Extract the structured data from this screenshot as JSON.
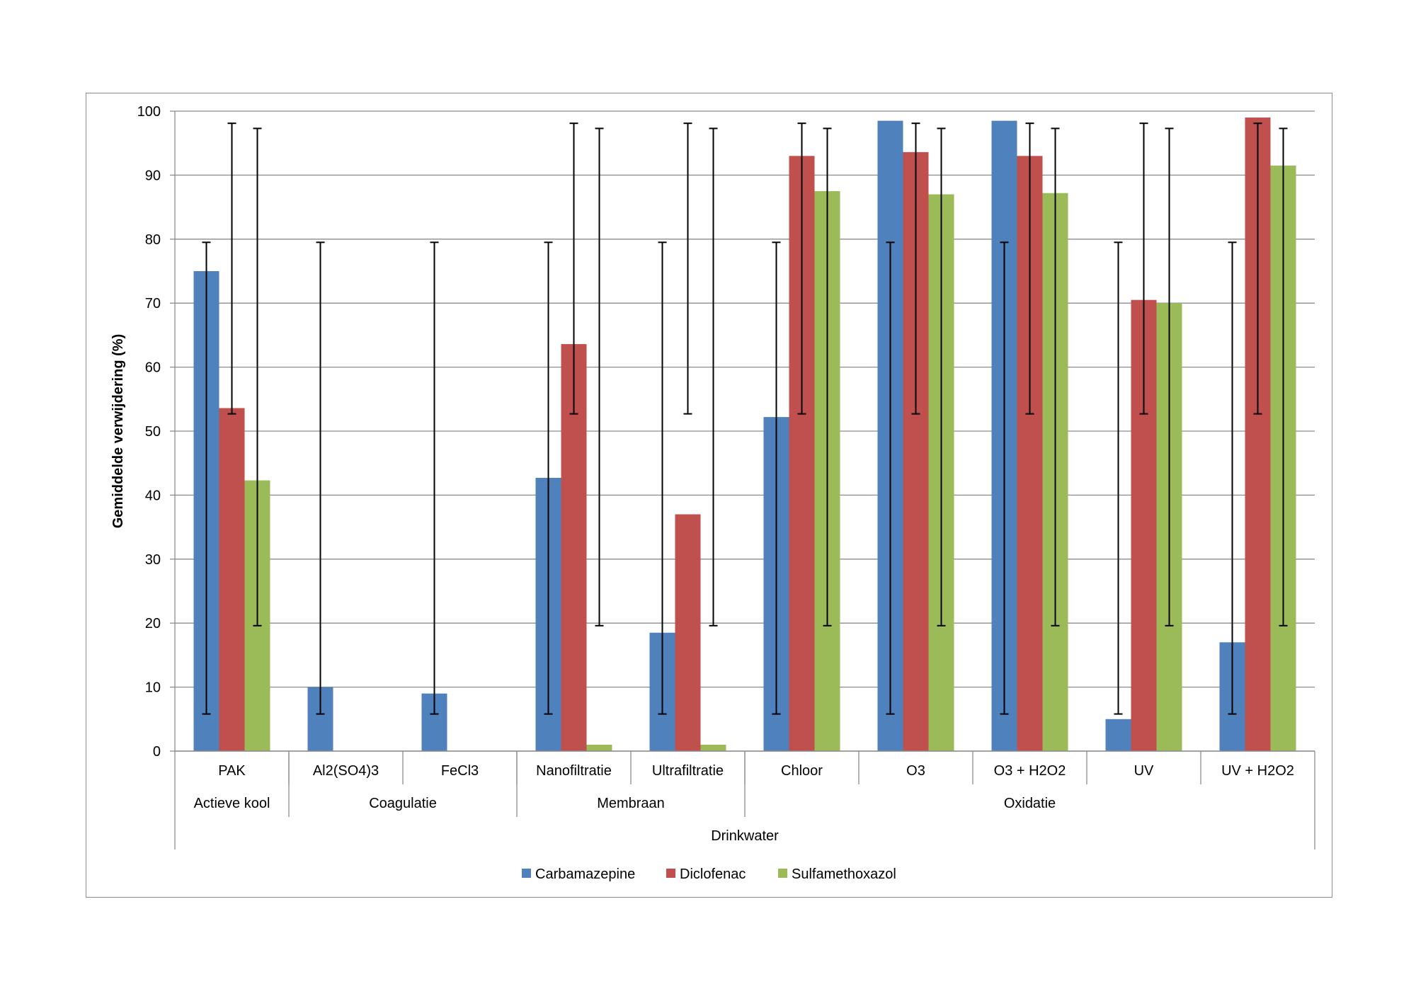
{
  "chart_data": {
    "type": "bar",
    "ylabel": "Gemiddelde verwijdering (%)",
    "ylim": [
      0,
      100
    ],
    "yticks": [
      0,
      10,
      20,
      30,
      40,
      50,
      60,
      70,
      80,
      90,
      100
    ],
    "grid": true,
    "legend_position": "bottom",
    "categories": [
      "PAK",
      "Al2(SO4)3",
      "FeCl3",
      "Nanofiltratie",
      "Ultrafiltratie",
      "Chloor",
      "O3",
      "O3 + H2O2",
      "UV",
      "UV + H2O2"
    ],
    "groups": [
      {
        "label": "Actieve kool",
        "span": 1
      },
      {
        "label": "Coagulatie",
        "span": 2
      },
      {
        "label": "Membraan",
        "span": 2
      },
      {
        "label": "Oxidatie",
        "span": 5
      }
    ],
    "outer_group": "Drinkwater",
    "series": [
      {
        "name": "Carbamazepine",
        "color": "#4f81bd",
        "values": [
          75,
          10,
          9,
          42.7,
          18.5,
          52.2,
          98.5,
          98.5,
          5,
          17
        ],
        "error_low": [
          5.8,
          5.8,
          5.8,
          5.8,
          5.8,
          5.8,
          5.8,
          5.8,
          5.8,
          5.8
        ],
        "error_high": [
          79.5,
          79.5,
          79.5,
          79.5,
          79.5,
          79.5,
          79.5,
          79.5,
          79.5,
          79.5
        ]
      },
      {
        "name": "Diclofenac",
        "color": "#c0504d",
        "values": [
          53.6,
          null,
          null,
          63.6,
          37,
          93,
          93.6,
          93,
          70.5,
          99
        ],
        "error_low": [
          52.7,
          null,
          null,
          52.7,
          52.7,
          52.7,
          52.7,
          52.7,
          52.7,
          52.7
        ],
        "error_high": [
          98.1,
          null,
          null,
          98.1,
          98.1,
          98.1,
          98.1,
          98.1,
          98.1,
          98.1
        ]
      },
      {
        "name": "Sulfamethoxazol",
        "color": "#9bbb59",
        "values": [
          42.3,
          null,
          null,
          1,
          1,
          87.5,
          87,
          87.2,
          70,
          91.5
        ],
        "error_low": [
          19.6,
          null,
          null,
          19.6,
          19.6,
          19.6,
          19.6,
          19.6,
          19.6,
          19.6
        ],
        "error_high": [
          97.3,
          null,
          null,
          97.3,
          97.3,
          97.3,
          97.3,
          97.3,
          97.3,
          97.3
        ]
      }
    ]
  }
}
